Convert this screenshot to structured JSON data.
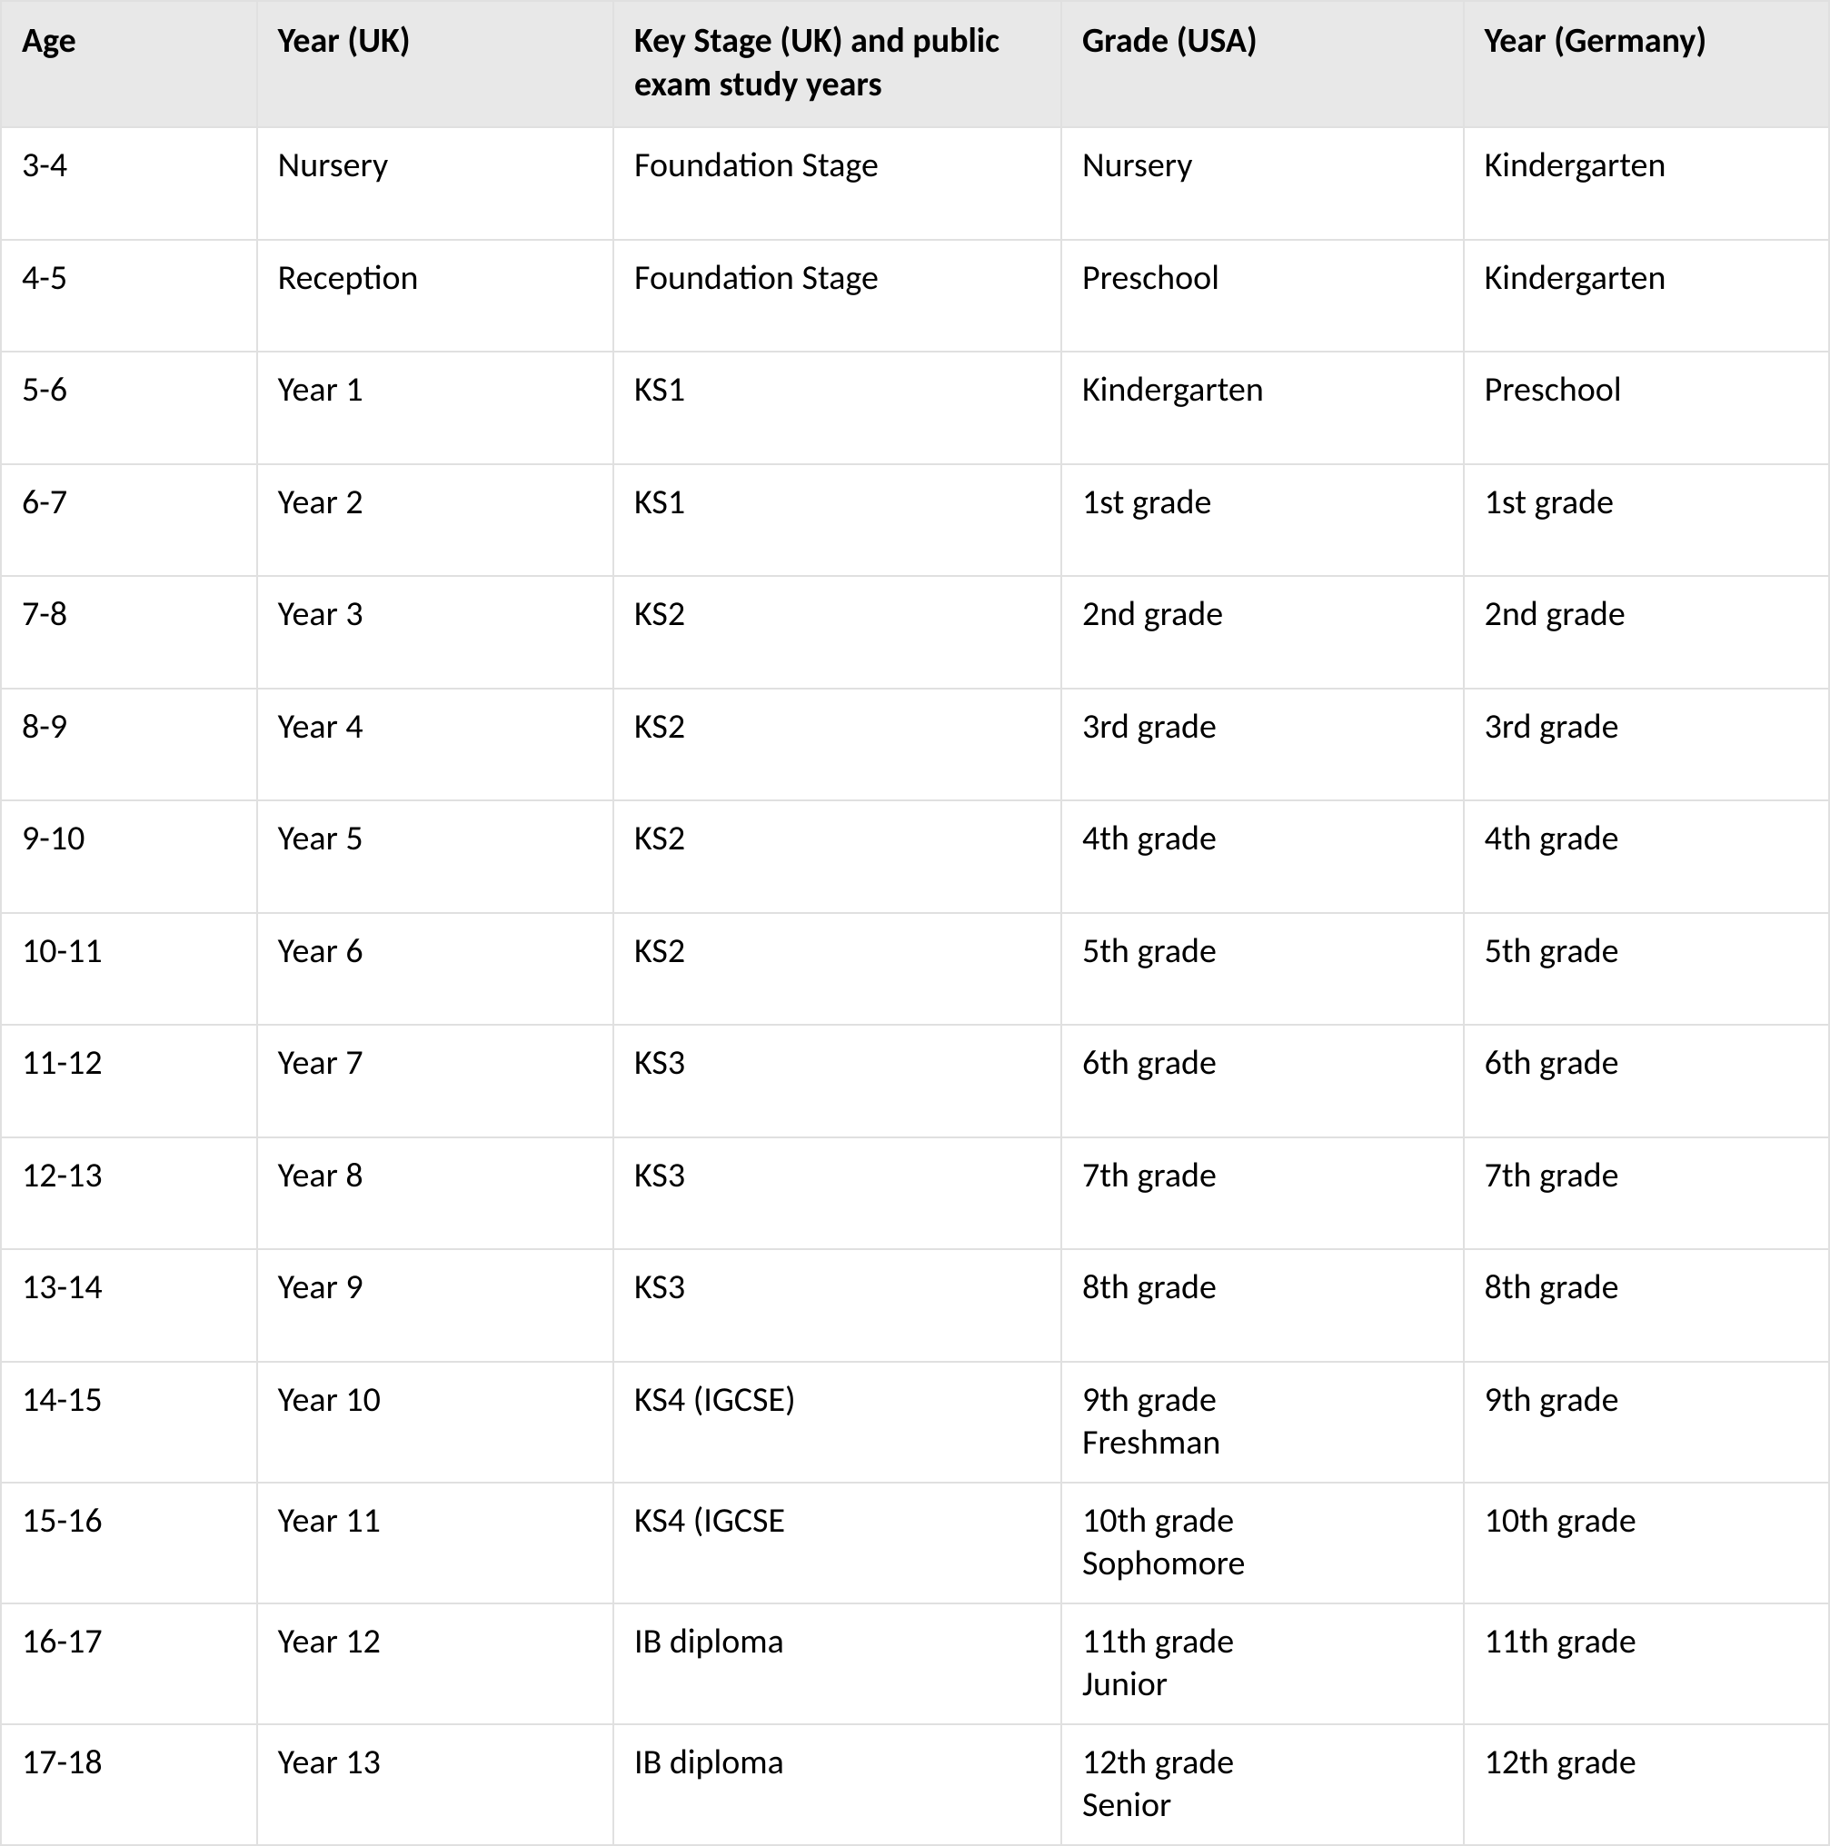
{
  "table": {
    "type": "table",
    "header_bg": "#e8e8e8",
    "cell_bg": "#ffffff",
    "border_color": "#e0e0e0",
    "text_color": "#000000",
    "header_fontsize": 38,
    "cell_fontsize": 38,
    "header_fontweight": 700,
    "column_widths_pct": [
      14,
      19.5,
      24.5,
      22,
      20
    ],
    "columns": [
      "Age",
      "Year (UK)",
      "Key Stage (UK) and public exam study years",
      "Grade (USA)",
      "Year (Germany)"
    ],
    "rows": [
      {
        "tight": false,
        "cells": [
          "3-4",
          "Nursery",
          "Foundation Stage",
          "Nursery",
          "Kindergarten"
        ]
      },
      {
        "tight": false,
        "cells": [
          "4-5",
          "Reception",
          "Foundation Stage",
          "Preschool",
          "Kindergarten"
        ]
      },
      {
        "tight": false,
        "cells": [
          "5-6",
          "Year 1",
          "KS1",
          "Kindergarten",
          "Preschool"
        ]
      },
      {
        "tight": false,
        "cells": [
          "6-7",
          "Year 2",
          "KS1",
          "1st grade",
          "1st grade"
        ]
      },
      {
        "tight": false,
        "cells": [
          "7-8",
          "Year 3",
          "KS2",
          "2nd grade",
          "2nd grade"
        ]
      },
      {
        "tight": false,
        "cells": [
          "8-9",
          "Year 4",
          "KS2",
          "3rd grade",
          "3rd grade"
        ]
      },
      {
        "tight": false,
        "cells": [
          "9-10",
          "Year 5",
          "KS2",
          "4th grade",
          "4th grade"
        ]
      },
      {
        "tight": false,
        "cells": [
          "10-11",
          "Year 6",
          "KS2",
          "5th grade",
          "5th grade"
        ]
      },
      {
        "tight": false,
        "cells": [
          "11-12",
          "Year 7",
          "KS3",
          "6th grade",
          "6th grade"
        ]
      },
      {
        "tight": false,
        "cells": [
          "12-13",
          "Year 8",
          "KS3",
          "7th grade",
          "7th grade"
        ]
      },
      {
        "tight": false,
        "cells": [
          "13-14",
          "Year 9",
          "KS3",
          "8th grade",
          "8th grade"
        ]
      },
      {
        "tight": true,
        "cells": [
          "14-15",
          "Year 10",
          "KS4 (IGCSE)",
          "9th grade\nFreshman",
          "9th grade"
        ]
      },
      {
        "tight": true,
        "cells": [
          "15-16",
          "Year 11",
          "KS4 (IGCSE",
          "10th grade\nSophomore",
          "10th grade"
        ]
      },
      {
        "tight": true,
        "cells": [
          "16-17",
          "Year 12",
          "IB diploma",
          "11th grade\nJunior",
          "11th grade"
        ]
      },
      {
        "tight": true,
        "cells": [
          "17-18",
          "Year 13",
          "IB diploma",
          "12th grade\nSenior",
          "12th grade"
        ]
      }
    ]
  }
}
